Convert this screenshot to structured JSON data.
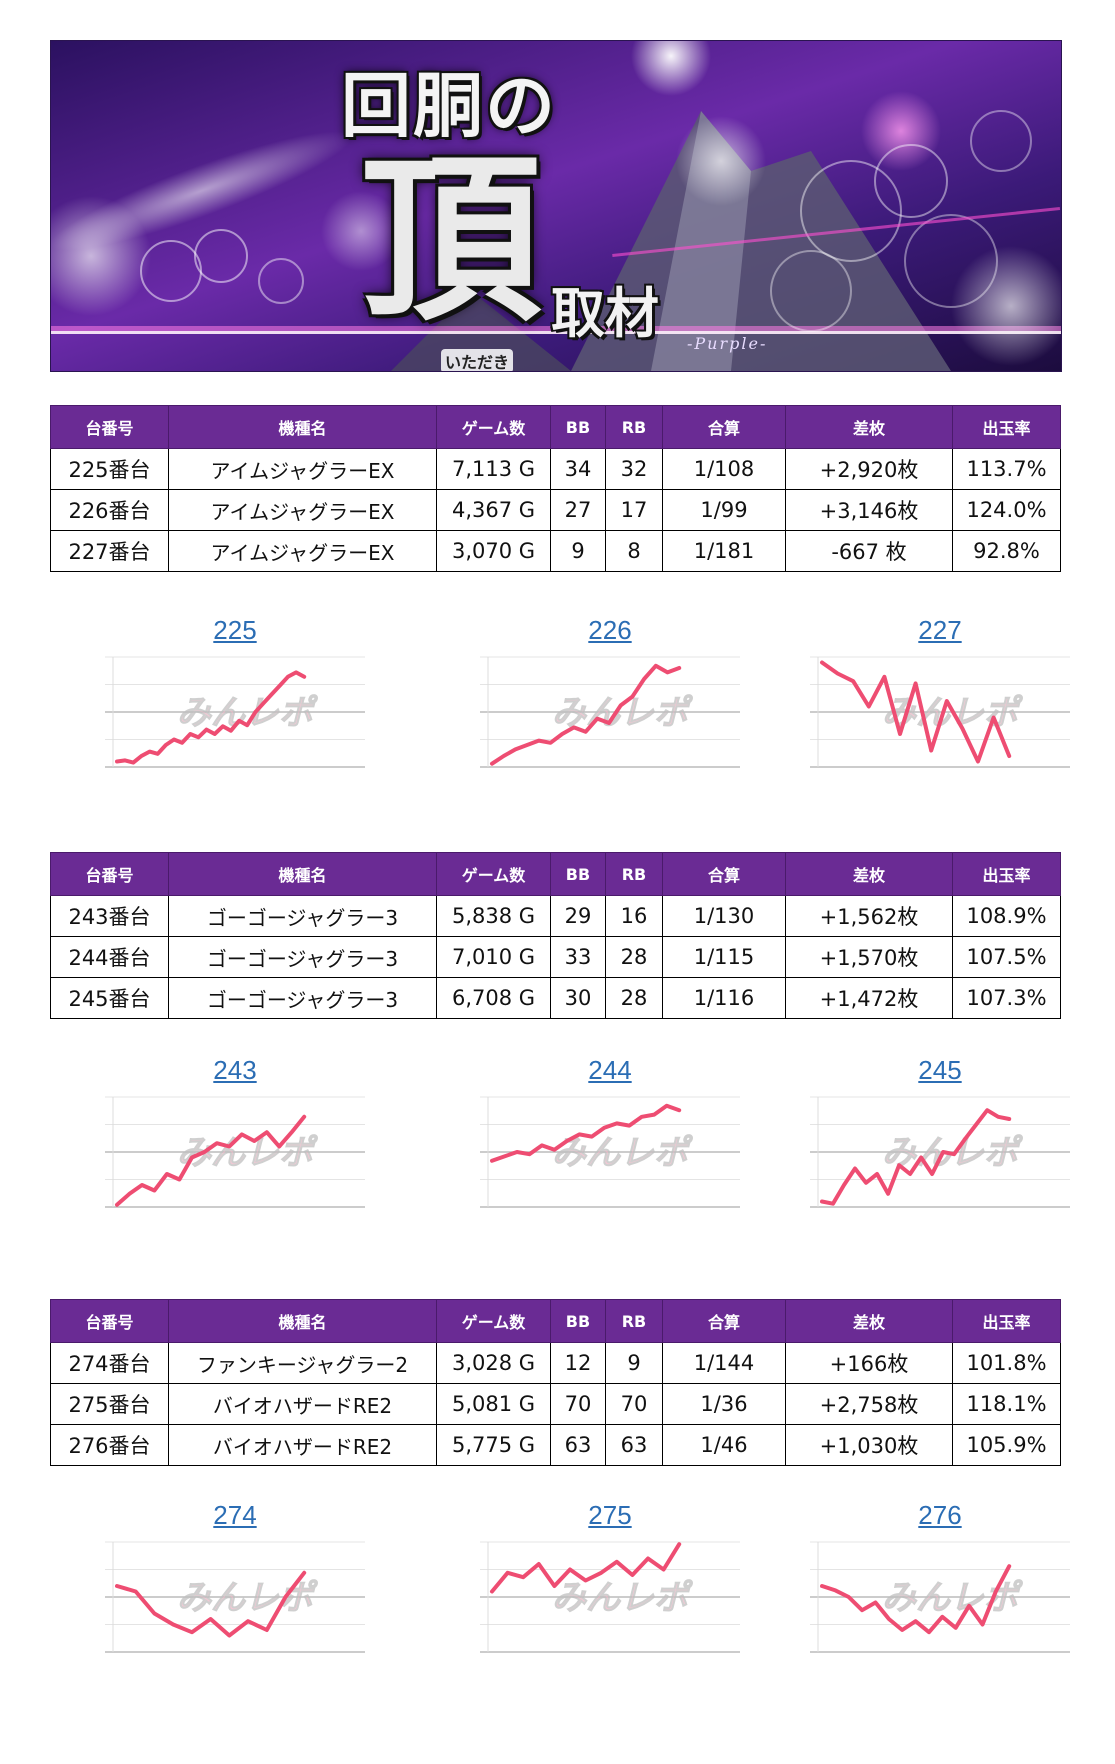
{
  "banner": {
    "title_top": "回胴の",
    "title_big": "頂",
    "title_sub": "取材",
    "ruby": "いただき",
    "english": "-Purple-"
  },
  "table_headers": [
    "台番号",
    "機種名",
    "ゲーム数",
    "BB",
    "RB",
    "合算",
    "差枚",
    "出玉率"
  ],
  "groups": [
    {
      "rows": [
        {
          "no": "225番台",
          "machine": "アイムジャグラーEX",
          "games": "7,113 G",
          "bb": "34",
          "rb": "32",
          "combined": "1/108",
          "diff": "+2,920枚",
          "diff_sign": "pos",
          "rate": "113.7%"
        },
        {
          "no": "226番台",
          "machine": "アイムジャグラーEX",
          "games": "4,367 G",
          "bb": "27",
          "rb": "17",
          "combined": "1/99",
          "diff": "+3,146枚",
          "diff_sign": "pos",
          "rate": "124.0%"
        },
        {
          "no": "227番台",
          "machine": "アイムジャグラーEX",
          "games": "3,070 G",
          "bb": "9",
          "rb": "8",
          "combined": "1/181",
          "diff": "-667 枚",
          "diff_sign": "neg",
          "rate": "92.8%"
        }
      ],
      "charts": [
        {
          "label": "225",
          "values": [
            0.05,
            0.06,
            0.04,
            0.1,
            0.14,
            0.12,
            0.2,
            0.25,
            0.22,
            0.3,
            0.27,
            0.34,
            0.3,
            0.37,
            0.33,
            0.42,
            0.38,
            0.5,
            0.58,
            0.66,
            0.74,
            0.82,
            0.86,
            0.82
          ]
        },
        {
          "label": "226",
          "values": [
            0.03,
            0.1,
            0.16,
            0.2,
            0.24,
            0.22,
            0.3,
            0.36,
            0.32,
            0.44,
            0.4,
            0.56,
            0.64,
            0.8,
            0.92,
            0.86,
            0.9
          ]
        },
        {
          "label": "227",
          "values": [
            0.95,
            0.85,
            0.78,
            0.55,
            0.82,
            0.3,
            0.76,
            0.15,
            0.6,
            0.35,
            0.05,
            0.45,
            0.1
          ]
        }
      ]
    },
    {
      "rows": [
        {
          "no": "243番台",
          "machine": "ゴーゴージャグラー3",
          "games": "5,838 G",
          "bb": "29",
          "rb": "16",
          "combined": "1/130",
          "diff": "+1,562枚",
          "diff_sign": "pos",
          "rate": "108.9%"
        },
        {
          "no": "244番台",
          "machine": "ゴーゴージャグラー3",
          "games": "7,010 G",
          "bb": "33",
          "rb": "28",
          "combined": "1/115",
          "diff": "+1,570枚",
          "diff_sign": "pos",
          "rate": "107.5%"
        },
        {
          "no": "245番台",
          "machine": "ゴーゴージャグラー3",
          "games": "6,708 G",
          "bb": "30",
          "rb": "28",
          "combined": "1/116",
          "diff": "+1,472枚",
          "diff_sign": "pos",
          "rate": "107.3%"
        }
      ],
      "charts": [
        {
          "label": "243",
          "values": [
            0.02,
            0.12,
            0.2,
            0.15,
            0.3,
            0.25,
            0.45,
            0.5,
            0.58,
            0.55,
            0.66,
            0.6,
            0.68,
            0.55,
            0.68,
            0.82
          ]
        },
        {
          "label": "244",
          "values": [
            0.42,
            0.46,
            0.5,
            0.48,
            0.56,
            0.52,
            0.6,
            0.66,
            0.64,
            0.72,
            0.76,
            0.74,
            0.82,
            0.84,
            0.92,
            0.88
          ]
        },
        {
          "label": "245",
          "values": [
            0.05,
            0.03,
            0.2,
            0.35,
            0.22,
            0.3,
            0.12,
            0.38,
            0.3,
            0.45,
            0.3,
            0.5,
            0.48,
            0.62,
            0.75,
            0.88,
            0.82,
            0.8
          ]
        }
      ]
    },
    {
      "rows": [
        {
          "no": "274番台",
          "machine": "ファンキージャグラー2",
          "games": "3,028 G",
          "bb": "12",
          "rb": "9",
          "combined": "1/144",
          "diff": "+166枚",
          "diff_sign": "pos",
          "rate": "101.8%"
        },
        {
          "no": "275番台",
          "machine": "バイオハザードRE2",
          "games": "5,081 G",
          "bb": "70",
          "rb": "70",
          "combined": "1/36",
          "diff": "+2,758枚",
          "diff_sign": "pos",
          "rate": "118.1%"
        },
        {
          "no": "276番台",
          "machine": "バイオハザードRE2",
          "games": "5,775 G",
          "bb": "63",
          "rb": "63",
          "combined": "1/46",
          "diff": "+1,030枚",
          "diff_sign": "pos",
          "rate": "105.9%"
        }
      ],
      "charts": [
        {
          "label": "274",
          "values": [
            0.6,
            0.55,
            0.35,
            0.25,
            0.18,
            0.3,
            0.15,
            0.28,
            0.2,
            0.5,
            0.72
          ]
        },
        {
          "label": "275",
          "values": [
            0.55,
            0.72,
            0.68,
            0.8,
            0.6,
            0.75,
            0.65,
            0.72,
            0.82,
            0.7,
            0.85,
            0.75,
            0.98
          ]
        },
        {
          "label": "276",
          "values": [
            0.6,
            0.56,
            0.5,
            0.38,
            0.45,
            0.3,
            0.2,
            0.28,
            0.18,
            0.32,
            0.22,
            0.42,
            0.25,
            0.55,
            0.78
          ]
        }
      ]
    }
  ],
  "watermark": "みんレポ",
  "colors": {
    "header_bg": "#6a2b94",
    "positive": "#1c1ccc",
    "negative": "#e01010",
    "chart_line": "#ee4d72",
    "chart_label": "#2b6db4"
  }
}
